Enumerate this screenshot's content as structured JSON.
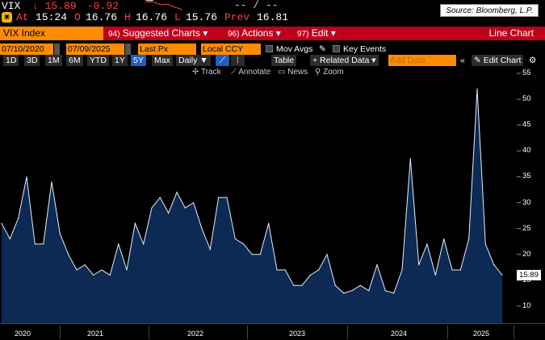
{
  "quote": {
    "ticker": "VIX",
    "arrow": "↓",
    "last": "15.89",
    "change": "-0.92",
    "dash": "-- / --"
  },
  "detail": {
    "at_label": "At",
    "at_value": "15:24",
    "open_label": "O",
    "open_value": "16.76",
    "high_label": "H",
    "high_value": "16.76",
    "low_label": "L",
    "low_value": "15.76",
    "prev_label": "Prev",
    "prev_value": "16.81",
    "source": "Source: Bloomberg, L.P."
  },
  "menubar": {
    "security": "VIX Index",
    "suggested_num": "94)",
    "suggested": "Suggested Charts ▾",
    "actions_num": "96)",
    "actions": "Actions ▾",
    "edit_num": "97)",
    "edit": "Edit ▾",
    "chart_type": "Line Chart"
  },
  "controls": {
    "start_date": "07/10/2020",
    "end_date": "07/09/2025",
    "periods": [
      "1D",
      "3D",
      "1M",
      "6M",
      "YTD",
      "1Y",
      "5Y",
      "Max"
    ],
    "selected_period": "5Y",
    "frequency": "Daily ▼",
    "field": "Last Px",
    "currency": "Local CCY",
    "mov_avgs": "Mov Avgs",
    "key_events": "Key Events",
    "table": "Table",
    "related_data": "+ Related Data ▾",
    "add_data_placeholder": "Add Data",
    "edit_chart": "✎ Edit Chart",
    "collapse": "«"
  },
  "tools": {
    "track": "Track",
    "annotate": "Annotate",
    "news": "News",
    "zoom": "Zoom"
  },
  "icons": {
    "monitor": "monitor-icon",
    "gear": "gear-icon",
    "down_arrow": "down-arrow-icon",
    "line_chart": "line-chart-icon",
    "bar_chart": "bar-chart-icon"
  },
  "colors": {
    "down": "#ff3d3d",
    "orange": "#ff8c00",
    "red": "#c0001a",
    "series_fill": "#0d2a55",
    "series_line": "#e8eef8",
    "selected": "#1e5fc0"
  },
  "chart_data": {
    "type": "area",
    "series": [
      {
        "name": "VIX Index",
        "x": [
          "2020-07",
          "2020-08",
          "2020-09",
          "2020-10",
          "2020-11",
          "2020-12",
          "2021-01",
          "2021-02",
          "2021-03",
          "2021-04",
          "2021-05",
          "2021-06",
          "2021-07",
          "2021-08",
          "2021-09",
          "2021-10",
          "2021-11",
          "2021-12",
          "2022-01",
          "2022-02",
          "2022-03",
          "2022-04",
          "2022-05",
          "2022-06",
          "2022-07",
          "2022-08",
          "2022-09",
          "2022-10",
          "2022-11",
          "2022-12",
          "2023-01",
          "2023-02",
          "2023-03",
          "2023-04",
          "2023-05",
          "2023-06",
          "2023-07",
          "2023-08",
          "2023-09",
          "2023-10",
          "2023-11",
          "2023-12",
          "2024-01",
          "2024-02",
          "2024-03",
          "2024-04",
          "2024-05",
          "2024-06",
          "2024-07",
          "2024-08",
          "2024-09",
          "2024-10",
          "2024-11",
          "2024-12",
          "2025-01",
          "2025-02",
          "2025-03",
          "2025-04",
          "2025-05",
          "2025-06",
          "2025-07"
        ],
        "values": [
          26,
          23,
          27,
          35,
          22,
          22,
          34,
          24,
          20,
          17,
          18,
          16,
          17,
          16,
          22,
          17,
          26,
          22,
          29,
          31,
          28,
          32,
          29,
          30,
          25,
          21,
          31,
          31,
          23,
          22,
          20,
          20,
          26,
          17,
          17,
          14,
          14,
          16,
          17,
          20,
          14,
          12.5,
          13,
          14,
          13,
          18,
          13,
          12.5,
          17,
          38.5,
          18,
          22,
          16,
          23,
          17,
          17,
          23,
          52,
          22,
          18,
          16
        ]
      }
    ],
    "last_value": "15.89",
    "x_labels": [
      "2020",
      "2021",
      "2022",
      "2023",
      "2024",
      "2025"
    ],
    "y_ticks": [
      10,
      15,
      20,
      25,
      30,
      35,
      40,
      45,
      50,
      55
    ],
    "ylim": [
      8,
      56
    ],
    "grid": false
  }
}
